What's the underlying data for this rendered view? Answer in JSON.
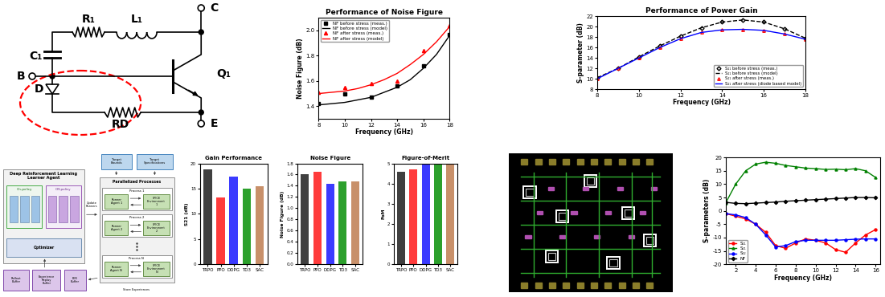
{
  "circuit": {
    "terminals": {
      "base": "B",
      "collector": "C",
      "emitter": "E"
    },
    "components": {
      "resistor": "R₁",
      "inductor": "L₁",
      "capacitor": "C₁",
      "transistor": "Q₁",
      "diode": "D",
      "diode_resistor": "RD"
    }
  },
  "drl_diagram": {
    "learner_title": "Deep Reinforcement Learning\nLearner Agent",
    "on_policy": "On-policy",
    "off_policy": "Off-policy",
    "optimizer": "Optimizer",
    "processes_title": "Parallelized Processes",
    "processes": [
      "Process 1",
      "Process 2",
      "Process N"
    ],
    "runners": [
      "Runner Agent 1",
      "Runner Agent 2",
      "Runner Agent N"
    ],
    "environments": [
      "SPICE Environment 1",
      "SPICE Environment 2",
      "SPICE Environment N"
    ],
    "target_bounds": "Target Bounds",
    "target_specifications": "Target Specifications",
    "update_runners": "Update Runners",
    "store_experiences": "Store Experiences",
    "buffers": [
      "Rollout Buffer",
      "Experience Replay Buffer",
      "PER Buffer"
    ]
  },
  "chart_data": [
    {
      "type": "line",
      "title": "Performance of Noise Figure",
      "xlabel": "Frequency (GHz)",
      "ylabel": "Noise Figure (dB)",
      "xlim": [
        8,
        18
      ],
      "ylim": [
        1.3,
        2.1
      ],
      "xticks": [
        8,
        10,
        12,
        14,
        16,
        18
      ],
      "yticks": [
        1.4,
        1.6,
        1.8,
        2.0
      ],
      "legend": "upper left",
      "series": [
        {
          "name": "NF before stress (meas.)",
          "type": "scatter",
          "color": "#000000",
          "marker": "square",
          "x": [
            8,
            10,
            12,
            14,
            16,
            18
          ],
          "values": [
            1.42,
            1.5,
            1.47,
            1.56,
            1.72,
            1.97
          ]
        },
        {
          "name": "NF before stress (model)",
          "type": "line",
          "color": "#000000",
          "line_style": "solid",
          "x": [
            8,
            9,
            10,
            11,
            12,
            13,
            14,
            15,
            16,
            17,
            18
          ],
          "values": [
            1.41,
            1.42,
            1.43,
            1.45,
            1.47,
            1.51,
            1.55,
            1.61,
            1.7,
            1.81,
            1.96
          ]
        },
        {
          "name": "NF after stress (meas.)",
          "type": "scatter",
          "color": "#ff0000",
          "marker": "triangle",
          "x": [
            8,
            10,
            12,
            14,
            16,
            18
          ],
          "values": [
            1.51,
            1.55,
            1.58,
            1.6,
            1.84,
            2.04
          ]
        },
        {
          "name": "NF after stress (model)",
          "type": "line",
          "color": "#ff0000",
          "line_style": "solid",
          "x": [
            8,
            9,
            10,
            11,
            12,
            13,
            14,
            15,
            16,
            17,
            18
          ],
          "values": [
            1.5,
            1.51,
            1.52,
            1.54,
            1.57,
            1.61,
            1.66,
            1.73,
            1.81,
            1.91,
            2.03
          ]
        }
      ]
    },
    {
      "type": "line",
      "title": "Performance of Power Gain",
      "xlabel": "Frequency (GHz)",
      "ylabel": "S-parameter (dB)",
      "xlim": [
        8,
        18
      ],
      "ylim": [
        8,
        22
      ],
      "xticks": [
        8,
        10,
        12,
        14,
        16,
        18
      ],
      "yticks": [
        8,
        10,
        12,
        14,
        16,
        18,
        20,
        22
      ],
      "legend": "lower right",
      "x": [
        8,
        9,
        10,
        11,
        12,
        13,
        14,
        15,
        16,
        17,
        18
      ],
      "series": [
        {
          "name": "S₂₁ before stress (meas.)",
          "type": "scatter",
          "color": "#000000",
          "marker": "open diamond",
          "values": [
            10.2,
            12.0,
            14.2,
            16.3,
            18.2,
            19.8,
            20.9,
            21.3,
            20.9,
            19.6,
            17.8
          ]
        },
        {
          "name": "S₂₁ before stress (model)",
          "type": "line",
          "color": "#000000",
          "line_style": "dashed",
          "values": [
            10.2,
            12.0,
            14.2,
            16.3,
            18.2,
            19.8,
            20.9,
            21.3,
            20.9,
            19.6,
            17.8
          ]
        },
        {
          "name": "S₂₁ after stress (meas.)",
          "type": "scatter",
          "color": "#ff0000",
          "marker": "open triangle",
          "values": [
            10.0,
            12.0,
            14.0,
            16.0,
            17.7,
            18.9,
            19.4,
            19.5,
            19.3,
            18.6,
            17.6
          ]
        },
        {
          "name": "S₂₁ after stress (diode based model)",
          "type": "line",
          "color": "#0000ff",
          "line_style": "solid",
          "values": [
            10.0,
            12.0,
            14.0,
            16.0,
            17.7,
            18.9,
            19.4,
            19.5,
            19.3,
            18.6,
            17.6
          ]
        }
      ]
    },
    {
      "type": "bar",
      "title": "Gain Performance",
      "ylabel": "S21 (dB)",
      "categories": [
        "TRPO",
        "PPO",
        "DDPG",
        "TD3",
        "SAC"
      ],
      "values": [
        18.8,
        13.2,
        17.4,
        15.0,
        15.4
      ],
      "colors": [
        "#404040",
        "#ff3b3b",
        "#3b3bff",
        "#2ca02c",
        "#c8906a"
      ],
      "ylim": [
        0,
        20
      ],
      "yticks": [
        0,
        5,
        10,
        15,
        20
      ]
    },
    {
      "type": "bar",
      "title": "Noise Figure",
      "ylabel": "Noise Figure (dB)",
      "categories": [
        "TRPO",
        "PPO",
        "DDPG",
        "TD3",
        "SAC"
      ],
      "values": [
        1.6,
        1.65,
        1.44,
        1.48,
        1.48
      ],
      "colors": [
        "#404040",
        "#ff3b3b",
        "#3b3bff",
        "#2ca02c",
        "#c8906a"
      ],
      "ylim": [
        0.0,
        1.8
      ],
      "yticks": [
        0.0,
        0.2,
        0.4,
        0.6,
        0.8,
        1.0,
        1.2,
        1.4,
        1.6,
        1.8
      ]
    },
    {
      "type": "bar",
      "title": "Figure-of-Merit",
      "ylabel": "FoM",
      "categories": [
        "TRPO",
        "PPO",
        "DDPG",
        "TD3",
        "SAC"
      ],
      "values": [
        4.6,
        4.7,
        5.0,
        5.0,
        5.0
      ],
      "colors": [
        "#404040",
        "#ff3b3b",
        "#3b3bff",
        "#2ca02c",
        "#c8906a"
      ],
      "ylim": [
        0,
        5
      ],
      "yticks": [
        0,
        1,
        2,
        3,
        4,
        5
      ]
    },
    {
      "type": "line",
      "xlabel": "Frequency (GHz)",
      "ylabel": "S-parameters (dB)",
      "xlim": [
        1,
        16.5
      ],
      "ylim": [
        -20,
        20
      ],
      "xticks": [
        2,
        4,
        6,
        8,
        10,
        12,
        14,
        16
      ],
      "yticks": [
        -20,
        -15,
        -10,
        -5,
        0,
        5,
        10,
        15,
        20
      ],
      "legend": "lower left",
      "x": [
        1,
        2,
        3,
        4,
        5,
        6,
        7,
        8,
        9,
        10,
        11,
        12,
        13,
        14,
        15,
        16
      ],
      "series": [
        {
          "name": "S₁₁",
          "color": "#ff0000",
          "marker": "circle",
          "line_style": "solid",
          "values": [
            -1,
            -2,
            -3,
            -5,
            -8,
            -13,
            -14,
            -12,
            -10.5,
            -11,
            -12,
            -14.5,
            -15.5,
            -12,
            -9,
            -7
          ]
        },
        {
          "name": "S₂₁",
          "color": "#008000",
          "marker": "triangle",
          "line_style": "solid",
          "values": [
            3,
            10,
            15,
            17.5,
            18.2,
            17.8,
            17,
            16.5,
            16,
            15.8,
            15.5,
            15.6,
            15.4,
            15.8,
            15.0,
            12.5
          ]
        },
        {
          "name": "S₁₂",
          "color": "#0000ff",
          "marker": "circle",
          "line_style": "solid",
          "values": [
            -1,
            -1.5,
            -2.5,
            -5,
            -9,
            -13.5,
            -13,
            -11.5,
            -11,
            -11,
            -11,
            -11,
            -10.8,
            -10.6,
            -10.5,
            -10.5
          ]
        },
        {
          "name": "NF",
          "color": "#000000",
          "marker": "diamond",
          "line_style": "solid",
          "values": [
            3.2,
            2.8,
            2.7,
            2.9,
            3.1,
            3.3,
            3.6,
            3.8,
            4.0,
            4.2,
            4.4,
            4.6,
            4.8,
            5.0,
            5.0,
            4.9
          ]
        }
      ]
    }
  ]
}
